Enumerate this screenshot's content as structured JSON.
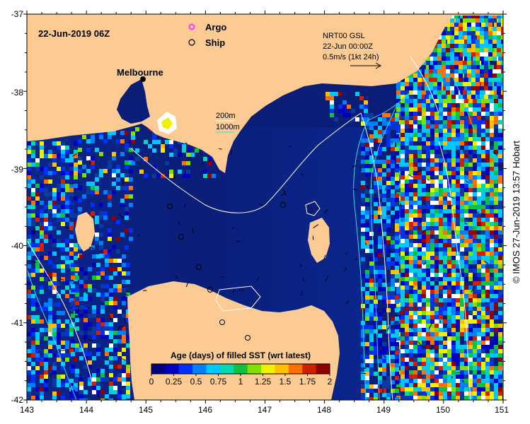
{
  "map": {
    "date_label": "22-Jun-2019 06Z",
    "city_label": "Melbourne",
    "legend": {
      "argo_label": "Argo",
      "ship_label": "Ship",
      "argo_color": "#ff33ff",
      "ship_color": "#000000"
    },
    "current_info": {
      "line1": "NRT00 GSL",
      "line2": "22-Jun 00:00Z",
      "line3": "0.5m/s (1kt 24h)"
    },
    "contours": {
      "label_200": "200m",
      "label_1000": "1000m",
      "color_200": "#ffffff",
      "color_1000": "#33dddd"
    },
    "colorbar": {
      "title": "Age (days) of filled SST (wrt latest)",
      "tick_labels": [
        "0",
        "0.25",
        "0.5",
        "0.75",
        "1",
        "1.25",
        "1.5",
        "1.75",
        "2"
      ],
      "colors": [
        "#000080",
        "#0000c0",
        "#0030ff",
        "#0080ff",
        "#00c8ff",
        "#00d8b0",
        "#10c040",
        "#80e000",
        "#f0f000",
        "#ffc000",
        "#ff7000",
        "#d02000",
        "#900000"
      ]
    },
    "lon_ticks": [
      "143",
      "144",
      "145",
      "146",
      "147",
      "148",
      "149",
      "150",
      "151"
    ],
    "lat_ticks": [
      "-37",
      "-38",
      "-39",
      "-40",
      "-41",
      "-42"
    ],
    "colors": {
      "land": "#fccb94",
      "ocean": "#0a1e78",
      "ocean_mid": "#0a3a9e"
    },
    "credit": "© IMOS 27-Jun-2019 13:57 Hobart"
  }
}
